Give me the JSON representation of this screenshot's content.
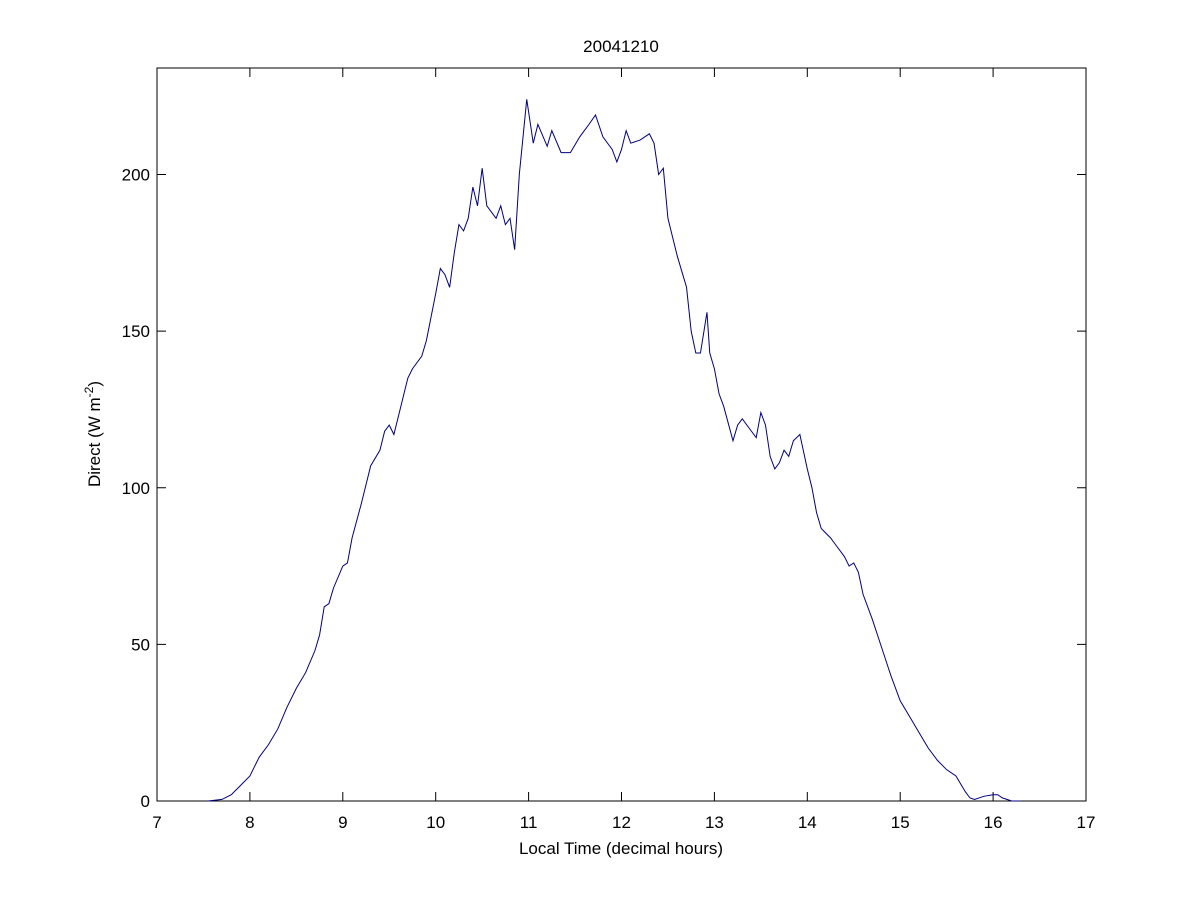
{
  "chart_data": {
    "type": "line",
    "title": "20041210",
    "xlabel": "Local Time (decimal hours)",
    "ylabel": {
      "text": "Direct (W m",
      "sup": "-2",
      "end": ")"
    },
    "xlim": [
      7,
      17
    ],
    "xticks": [
      7,
      8,
      9,
      10,
      11,
      12,
      13,
      14,
      15,
      16,
      17
    ],
    "ylim": [
      0,
      234
    ],
    "yticks": [
      0,
      50,
      100,
      150,
      200
    ],
    "series": [
      {
        "color": "#00007f",
        "x": [
          7.55,
          7.7,
          7.8,
          7.9,
          8.0,
          8.1,
          8.2,
          8.3,
          8.4,
          8.5,
          8.6,
          8.7,
          8.75,
          8.8,
          8.85,
          8.9,
          9.0,
          9.05,
          9.1,
          9.2,
          9.3,
          9.4,
          9.45,
          9.5,
          9.55,
          9.6,
          9.7,
          9.75,
          9.85,
          9.9,
          10.0,
          10.05,
          10.1,
          10.15,
          10.2,
          10.25,
          10.3,
          10.35,
          10.4,
          10.45,
          10.5,
          10.55,
          10.6,
          10.65,
          10.7,
          10.75,
          10.8,
          10.85,
          10.9,
          10.95,
          10.98,
          11.05,
          11.1,
          11.2,
          11.25,
          11.35,
          11.45,
          11.55,
          11.65,
          11.72,
          11.8,
          11.9,
          11.95,
          12.0,
          12.05,
          12.1,
          12.2,
          12.3,
          12.35,
          12.4,
          12.45,
          12.5,
          12.6,
          12.7,
          12.75,
          12.8,
          12.85,
          12.92,
          12.95,
          13.0,
          13.05,
          13.1,
          13.2,
          13.25,
          13.3,
          13.4,
          13.45,
          13.5,
          13.55,
          13.6,
          13.65,
          13.7,
          13.75,
          13.8,
          13.85,
          13.92,
          14.0,
          14.05,
          14.1,
          14.15,
          14.25,
          14.3,
          14.4,
          14.45,
          14.5,
          14.55,
          14.6,
          14.7,
          14.8,
          14.9,
          15.0,
          15.1,
          15.2,
          15.3,
          15.4,
          15.5,
          15.6,
          15.7,
          15.75,
          15.8,
          15.9,
          16.0,
          16.05,
          16.1,
          16.2,
          16.3
        ],
        "values": [
          0,
          0.5,
          2,
          5,
          8,
          14,
          18,
          23,
          30,
          36,
          41,
          48,
          53,
          62,
          63,
          68,
          75,
          76,
          84,
          95,
          107,
          112,
          118,
          120,
          117,
          123,
          135,
          138,
          142,
          147,
          162,
          170,
          168,
          164,
          175,
          184,
          182,
          186,
          196,
          190,
          202,
          190,
          188,
          186,
          190,
          184,
          186,
          176,
          200,
          215,
          224,
          210,
          216,
          209,
          214,
          207,
          207,
          212,
          216,
          219,
          212,
          208,
          204,
          208,
          214,
          210,
          211,
          213,
          210,
          200,
          202,
          186,
          174,
          164,
          150,
          143,
          143,
          156,
          143,
          138,
          130,
          126,
          115,
          120,
          122,
          118,
          116,
          124,
          120,
          110,
          106,
          108,
          112,
          110,
          115,
          117,
          106,
          100,
          92,
          87,
          84,
          82,
          78,
          75,
          76,
          73,
          66,
          58,
          49,
          40,
          32,
          27,
          22,
          17,
          13,
          10,
          8,
          3,
          1,
          0.5,
          1.5,
          2,
          2,
          1,
          0,
          0
        ]
      }
    ]
  }
}
